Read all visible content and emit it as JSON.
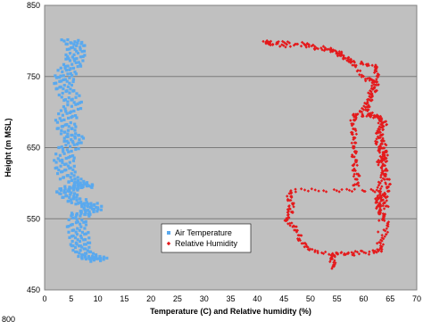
{
  "page": {
    "title": "",
    "corner_text": "800"
  },
  "chart_data": {
    "type": "scatter",
    "title": "",
    "xlabel": "Temperature (C) and Relative humidity (%)",
    "ylabel": "Height (m MSL)",
    "xlim": [
      0,
      70
    ],
    "ylim": [
      450,
      850
    ],
    "xticks": [
      0,
      5,
      10,
      15,
      20,
      25,
      30,
      35,
      40,
      45,
      50,
      55,
      60,
      65,
      70
    ],
    "yticks": [
      450,
      550,
      650,
      750,
      850
    ],
    "grid": "horizontal lines at major y ticks",
    "legend_position": "center-left",
    "plot_background": "#c0c0c0",
    "series": [
      {
        "name": "Air Temperature",
        "color": "#5aa9ee",
        "marker": "square",
        "points": [
          [
            10.5,
            492
          ],
          [
            9.8,
            494
          ],
          [
            9.2,
            495
          ],
          [
            8.6,
            496
          ],
          [
            8.0,
            496
          ],
          [
            7.6,
            500
          ],
          [
            7.2,
            504
          ],
          [
            7.0,
            508
          ],
          [
            6.8,
            512
          ],
          [
            6.7,
            516
          ],
          [
            6.6,
            520
          ],
          [
            6.5,
            525
          ],
          [
            6.4,
            530
          ],
          [
            6.2,
            535
          ],
          [
            6.0,
            540
          ],
          [
            5.9,
            546
          ],
          [
            6.1,
            552
          ],
          [
            6.8,
            556
          ],
          [
            7.6,
            558
          ],
          [
            8.2,
            560
          ],
          [
            8.8,
            562
          ],
          [
            9.0,
            565
          ],
          [
            8.8,
            568
          ],
          [
            8.0,
            570
          ],
          [
            7.0,
            572
          ],
          [
            6.0,
            575
          ],
          [
            5.0,
            578
          ],
          [
            4.6,
            582
          ],
          [
            4.2,
            585
          ],
          [
            3.9,
            588
          ],
          [
            4.3,
            591
          ],
          [
            5.0,
            593
          ],
          [
            5.8,
            594
          ],
          [
            6.5,
            595
          ],
          [
            7.2,
            596
          ],
          [
            7.8,
            597
          ],
          [
            7.2,
            599
          ],
          [
            6.4,
            600
          ],
          [
            5.6,
            603
          ],
          [
            4.8,
            607
          ],
          [
            4.4,
            612
          ],
          [
            4.1,
            617
          ],
          [
            3.8,
            622
          ],
          [
            3.7,
            627
          ],
          [
            3.6,
            632
          ],
          [
            3.8,
            638
          ],
          [
            4.2,
            644
          ],
          [
            4.6,
            650
          ],
          [
            5.0,
            656
          ],
          [
            5.3,
            660
          ],
          [
            5.6,
            664
          ],
          [
            5.2,
            668
          ],
          [
            4.6,
            672
          ],
          [
            4.1,
            677
          ],
          [
            3.8,
            682
          ],
          [
            3.9,
            688
          ],
          [
            4.3,
            694
          ],
          [
            4.7,
            700
          ],
          [
            5.0,
            706
          ],
          [
            5.2,
            712
          ],
          [
            5.0,
            718
          ],
          [
            4.6,
            724
          ],
          [
            4.2,
            730
          ],
          [
            3.8,
            735
          ],
          [
            3.6,
            740
          ],
          [
            3.5,
            745
          ],
          [
            3.8,
            750
          ],
          [
            4.2,
            755
          ],
          [
            4.6,
            760
          ],
          [
            5.0,
            765
          ],
          [
            5.3,
            770
          ],
          [
            5.6,
            775
          ],
          [
            5.8,
            780
          ],
          [
            6.0,
            785
          ],
          [
            6.1,
            790
          ],
          [
            5.8,
            795
          ],
          [
            5.4,
            798
          ],
          [
            5.0,
            800
          ]
        ]
      },
      {
        "name": "Relative Humidity",
        "color": "#e41a1c",
        "marker": "diamond",
        "points": [
          [
            54.5,
            482
          ],
          [
            54.2,
            488
          ],
          [
            54.0,
            496
          ],
          [
            54.5,
            500
          ],
          [
            57.0,
            502
          ],
          [
            60.0,
            503
          ],
          [
            63.0,
            505
          ],
          [
            63.2,
            510
          ],
          [
            63.6,
            520
          ],
          [
            64.0,
            530
          ],
          [
            64.5,
            540
          ],
          [
            64.0,
            550
          ],
          [
            63.5,
            556
          ],
          [
            63.0,
            560
          ],
          [
            62.8,
            566
          ],
          [
            62.8,
            570
          ],
          [
            62.5,
            576
          ],
          [
            63.0,
            580
          ],
          [
            63.8,
            584
          ],
          [
            63.2,
            588
          ],
          [
            60.0,
            590
          ],
          [
            56.0,
            590
          ],
          [
            52.0,
            590
          ],
          [
            47.0,
            590
          ],
          [
            46.2,
            586
          ],
          [
            46.0,
            578
          ],
          [
            46.6,
            570
          ],
          [
            46.0,
            565
          ],
          [
            46.3,
            558
          ],
          [
            45.5,
            552
          ],
          [
            45.8,
            546
          ],
          [
            46.8,
            540
          ],
          [
            47.5,
            530
          ],
          [
            48.2,
            520
          ],
          [
            49.0,
            512
          ],
          [
            50.0,
            506
          ],
          [
            52.0,
            503
          ],
          [
            55.0,
            501
          ],
          [
            58.5,
            500
          ],
          [
            63.0,
            503
          ],
          [
            63.0,
            590
          ],
          [
            63.2,
            600
          ],
          [
            63.8,
            610
          ],
          [
            63.4,
            620
          ],
          [
            63.0,
            630
          ],
          [
            63.5,
            635
          ],
          [
            63.8,
            640
          ],
          [
            63.2,
            645
          ],
          [
            62.8,
            650
          ],
          [
            62.5,
            660
          ],
          [
            62.8,
            670
          ],
          [
            63.0,
            680
          ],
          [
            63.5,
            690
          ],
          [
            62.5,
            694
          ],
          [
            60.0,
            696
          ],
          [
            58.5,
            696
          ],
          [
            58.0,
            690
          ],
          [
            58.0,
            680
          ],
          [
            58.2,
            670
          ],
          [
            58.0,
            660
          ],
          [
            58.3,
            650
          ],
          [
            58.2,
            640
          ],
          [
            58.5,
            630
          ],
          [
            58.3,
            620
          ],
          [
            58.8,
            610
          ],
          [
            58.8,
            600
          ],
          [
            58.5,
            596
          ],
          [
            58.0,
            690
          ],
          [
            59.5,
            700
          ],
          [
            60.5,
            710
          ],
          [
            61.0,
            720
          ],
          [
            61.5,
            730
          ],
          [
            62.0,
            740
          ],
          [
            62.5,
            750
          ],
          [
            62.5,
            760
          ],
          [
            62.0,
            765
          ],
          [
            60.0,
            768
          ],
          [
            58.0,
            770
          ],
          [
            57.0,
            775
          ],
          [
            56.0,
            780
          ],
          [
            55.0,
            785
          ],
          [
            53.0,
            790
          ],
          [
            50.0,
            794
          ],
          [
            47.0,
            797
          ],
          [
            44.0,
            798
          ],
          [
            42.0,
            799
          ],
          [
            41.5,
            797
          ],
          [
            43.0,
            795
          ],
          [
            46.0,
            793
          ],
          [
            49.0,
            794
          ],
          [
            51.0,
            790
          ],
          [
            53.5,
            787
          ],
          [
            55.0,
            783
          ],
          [
            56.0,
            778
          ],
          [
            57.5,
            772
          ],
          [
            58.5,
            762
          ],
          [
            60.0,
            750
          ],
          [
            61.0,
            745
          ],
          [
            62.5,
            742
          ],
          [
            62.2,
            735
          ],
          [
            62.0,
            728
          ],
          [
            61.5,
            722
          ],
          [
            61.0,
            715
          ],
          [
            60.5,
            708
          ],
          [
            61.0,
            700
          ],
          [
            61.8,
            695
          ],
          [
            62.8,
            692
          ],
          [
            63.5,
            688
          ],
          [
            64.0,
            684
          ],
          [
            63.5,
            678
          ],
          [
            63.0,
            672
          ],
          [
            63.2,
            666
          ],
          [
            63.6,
            660
          ],
          [
            63.8,
            652
          ],
          [
            64.0,
            644
          ],
          [
            64.2,
            636
          ],
          [
            63.8,
            630
          ],
          [
            64.0,
            620
          ],
          [
            64.3,
            610
          ],
          [
            64.6,
            600
          ],
          [
            64.5,
            592
          ],
          [
            64.2,
            584
          ],
          [
            64.0,
            578
          ],
          [
            63.9,
            572
          ],
          [
            64.2,
            565
          ]
        ]
      }
    ]
  }
}
